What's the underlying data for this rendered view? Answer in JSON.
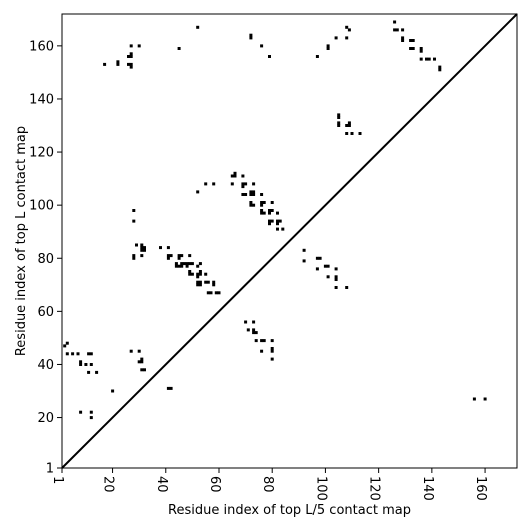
{
  "chart_data": {
    "type": "scatter",
    "xlabel": "Residue index of top L/5 contact map",
    "ylabel": "Residue index of top L contact map",
    "xlim": [
      1,
      172
    ],
    "ylim": [
      1,
      172
    ],
    "x_ticks": [
      1,
      20,
      40,
      60,
      80,
      100,
      120,
      140,
      160
    ],
    "y_ticks": [
      1,
      20,
      40,
      60,
      80,
      100,
      120,
      140,
      160
    ],
    "diagonal": true,
    "marker": "square",
    "color": "#000000",
    "series": [
      {
        "points": [
          [
            156,
            27
          ],
          [
            160,
            27
          ],
          [
            8,
            22
          ],
          [
            12,
            22
          ],
          [
            12,
            20
          ],
          [
            3,
            48
          ],
          [
            2,
            47
          ],
          [
            5,
            44
          ],
          [
            7,
            44
          ],
          [
            3,
            44
          ],
          [
            11,
            44
          ],
          [
            12,
            44
          ],
          [
            8,
            41
          ],
          [
            8,
            40
          ],
          [
            10,
            40
          ],
          [
            12,
            40
          ],
          [
            11,
            37
          ],
          [
            14,
            37
          ],
          [
            20,
            30
          ],
          [
            27,
            45
          ],
          [
            30,
            45
          ],
          [
            30,
            41
          ],
          [
            31,
            41
          ],
          [
            31,
            42
          ],
          [
            31,
            38
          ],
          [
            32,
            38
          ],
          [
            42,
            31
          ],
          [
            41,
            31
          ],
          [
            92,
            83
          ],
          [
            92,
            79
          ],
          [
            97,
            80
          ],
          [
            98,
            80
          ],
          [
            97,
            76
          ],
          [
            100,
            77
          ],
          [
            101,
            77
          ],
          [
            101,
            73
          ],
          [
            104,
            73
          ],
          [
            104,
            72
          ],
          [
            104,
            76
          ],
          [
            104,
            69
          ],
          [
            108,
            69
          ],
          [
            70,
            56
          ],
          [
            73,
            56
          ],
          [
            71,
            53
          ],
          [
            73,
            53
          ],
          [
            74,
            52
          ],
          [
            73,
            52
          ],
          [
            74,
            49
          ],
          [
            76,
            49
          ],
          [
            77,
            49
          ],
          [
            80,
            49
          ],
          [
            76,
            45
          ],
          [
            80,
            45
          ],
          [
            80,
            46
          ],
          [
            80,
            42
          ],
          [
            17,
            153
          ],
          [
            22,
            154
          ],
          [
            22,
            153
          ],
          [
            26,
            153
          ],
          [
            27,
            153
          ],
          [
            27,
            152
          ],
          [
            26,
            156
          ],
          [
            27,
            156
          ],
          [
            27,
            157
          ],
          [
            27,
            160
          ],
          [
            30,
            160
          ],
          [
            45,
            159
          ],
          [
            52,
            167
          ],
          [
            72,
            164
          ],
          [
            72,
            163
          ],
          [
            76,
            160
          ],
          [
            79,
            156
          ],
          [
            97,
            156
          ],
          [
            101,
            160
          ],
          [
            101,
            159
          ],
          [
            104,
            163
          ],
          [
            108,
            167
          ],
          [
            109,
            166
          ],
          [
            108,
            163
          ],
          [
            126,
            169
          ],
          [
            126,
            166
          ],
          [
            127,
            166
          ],
          [
            129,
            166
          ],
          [
            129,
            163
          ],
          [
            129,
            162
          ],
          [
            132,
            162
          ],
          [
            133,
            162
          ],
          [
            132,
            159
          ],
          [
            133,
            159
          ],
          [
            136,
            159
          ],
          [
            136,
            158
          ],
          [
            136,
            155
          ],
          [
            138,
            155
          ],
          [
            139,
            155
          ],
          [
            141,
            155
          ],
          [
            143,
            152
          ],
          [
            143,
            151
          ],
          [
            105,
            134
          ],
          [
            105,
            133
          ],
          [
            105,
            131
          ],
          [
            105,
            130
          ],
          [
            108,
            130
          ],
          [
            109,
            130
          ],
          [
            109,
            131
          ],
          [
            108,
            127
          ],
          [
            110,
            127
          ],
          [
            113,
            127
          ],
          [
            28,
            98
          ],
          [
            28,
            94
          ],
          [
            29,
            85
          ],
          [
            31,
            85
          ],
          [
            31,
            84
          ],
          [
            32,
            84
          ],
          [
            31,
            83
          ],
          [
            32,
            83
          ],
          [
            28,
            81
          ],
          [
            28,
            80
          ],
          [
            31,
            81
          ],
          [
            38,
            84
          ],
          [
            41,
            84
          ],
          [
            41,
            81
          ],
          [
            42,
            81
          ],
          [
            41,
            80
          ],
          [
            45,
            81
          ],
          [
            46,
            81
          ],
          [
            45,
            80
          ],
          [
            44,
            78
          ],
          [
            46,
            78
          ],
          [
            44,
            77
          ],
          [
            45,
            77
          ],
          [
            46,
            77
          ],
          [
            47,
            78
          ],
          [
            48,
            78
          ],
          [
            49,
            78
          ],
          [
            49,
            81
          ],
          [
            48,
            77
          ],
          [
            50,
            78
          ],
          [
            49,
            75
          ],
          [
            49,
            74
          ],
          [
            50,
            74
          ],
          [
            52,
            77
          ],
          [
            53,
            78
          ],
          [
            52,
            74
          ],
          [
            53,
            74
          ],
          [
            52,
            73
          ],
          [
            53,
            75
          ],
          [
            55,
            74
          ],
          [
            52,
            71
          ],
          [
            53,
            71
          ],
          [
            52,
            70
          ],
          [
            53,
            70
          ],
          [
            55,
            71
          ],
          [
            56,
            71
          ],
          [
            58,
            70
          ],
          [
            58,
            71
          ],
          [
            56,
            67
          ],
          [
            57,
            67
          ],
          [
            59,
            67
          ],
          [
            60,
            67
          ],
          [
            52,
            105
          ],
          [
            55,
            108
          ],
          [
            58,
            108
          ],
          [
            65,
            111
          ],
          [
            66,
            111
          ],
          [
            66,
            112
          ],
          [
            69,
            111
          ],
          [
            65,
            108
          ],
          [
            69,
            108
          ],
          [
            69,
            107
          ],
          [
            70,
            108
          ],
          [
            69,
            104
          ],
          [
            70,
            104
          ],
          [
            72,
            104
          ],
          [
            73,
            104
          ],
          [
            72,
            105
          ],
          [
            73,
            105
          ],
          [
            73,
            108
          ],
          [
            72,
            101
          ],
          [
            72,
            100
          ],
          [
            73,
            100
          ],
          [
            76,
            104
          ],
          [
            76,
            101
          ],
          [
            77,
            101
          ],
          [
            76,
            100
          ],
          [
            76,
            98
          ],
          [
            76,
            97
          ],
          [
            77,
            97
          ],
          [
            79,
            97
          ],
          [
            79,
            98
          ],
          [
            80,
            98
          ],
          [
            80,
            101
          ],
          [
            79,
            94
          ],
          [
            80,
            94
          ],
          [
            79,
            93
          ],
          [
            82,
            97
          ],
          [
            82,
            94
          ],
          [
            83,
            94
          ],
          [
            82,
            93
          ],
          [
            82,
            91
          ],
          [
            84,
            91
          ]
        ]
      }
    ]
  }
}
